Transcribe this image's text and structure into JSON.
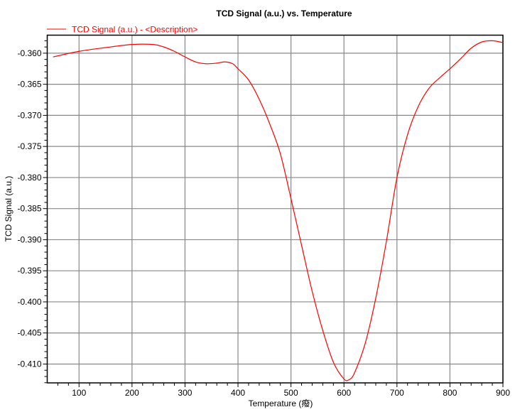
{
  "chart_data": {
    "type": "line",
    "title": "TCD Signal (a.u.) vs. Temperature",
    "xlabel": "Temperature (癈)",
    "ylabel": "TCD Signal (a.u.)",
    "xlim": [
      40,
      900
    ],
    "ylim": [
      -0.41303,
      -0.3571
    ],
    "xticks": [
      100,
      200,
      300,
      400,
      500,
      600,
      700,
      800,
      900
    ],
    "xtick_labels": [
      "100",
      "200",
      "300",
      "400",
      "500",
      "600",
      "700",
      "800",
      "900"
    ],
    "yticks": [
      -0.36,
      -0.365,
      -0.37,
      -0.375,
      -0.38,
      -0.385,
      -0.39,
      -0.395,
      -0.4,
      -0.405,
      -0.41
    ],
    "ytick_labels": [
      "-0.360",
      "-0.365",
      "-0.370",
      "-0.375",
      "-0.380",
      "-0.385",
      "-0.390",
      "-0.395",
      "-0.400",
      "-0.405",
      "-0.410"
    ],
    "grid": true,
    "legend_position": "top-left",
    "series": [
      {
        "name": "TCD Signal (a.u.) - <Description>",
        "color": "#ff0000",
        "x": [
          51,
          100,
          150,
          200,
          240,
          260,
          280,
          300,
          320,
          340,
          360,
          375,
          390,
          400,
          420,
          440,
          460,
          480,
          500,
          520,
          540,
          560,
          580,
          600,
          610,
          620,
          640,
          660,
          680,
          700,
          720,
          740,
          760,
          780,
          800,
          820,
          840,
          860,
          880,
          900
        ],
        "y": [
          -0.3606,
          -0.3597,
          -0.3591,
          -0.3586,
          -0.3586,
          -0.359,
          -0.3597,
          -0.3606,
          -0.3614,
          -0.3617,
          -0.3616,
          -0.3614,
          -0.3617,
          -0.3625,
          -0.3643,
          -0.3674,
          -0.3714,
          -0.3762,
          -0.3834,
          -0.3909,
          -0.3983,
          -0.4046,
          -0.4097,
          -0.4124,
          -0.4125,
          -0.4114,
          -0.4067,
          -0.3994,
          -0.3903,
          -0.38,
          -0.3731,
          -0.3686,
          -0.3657,
          -0.364,
          -0.3625,
          -0.3609,
          -0.3592,
          -0.3582,
          -0.358,
          -0.3583
        ]
      }
    ]
  }
}
